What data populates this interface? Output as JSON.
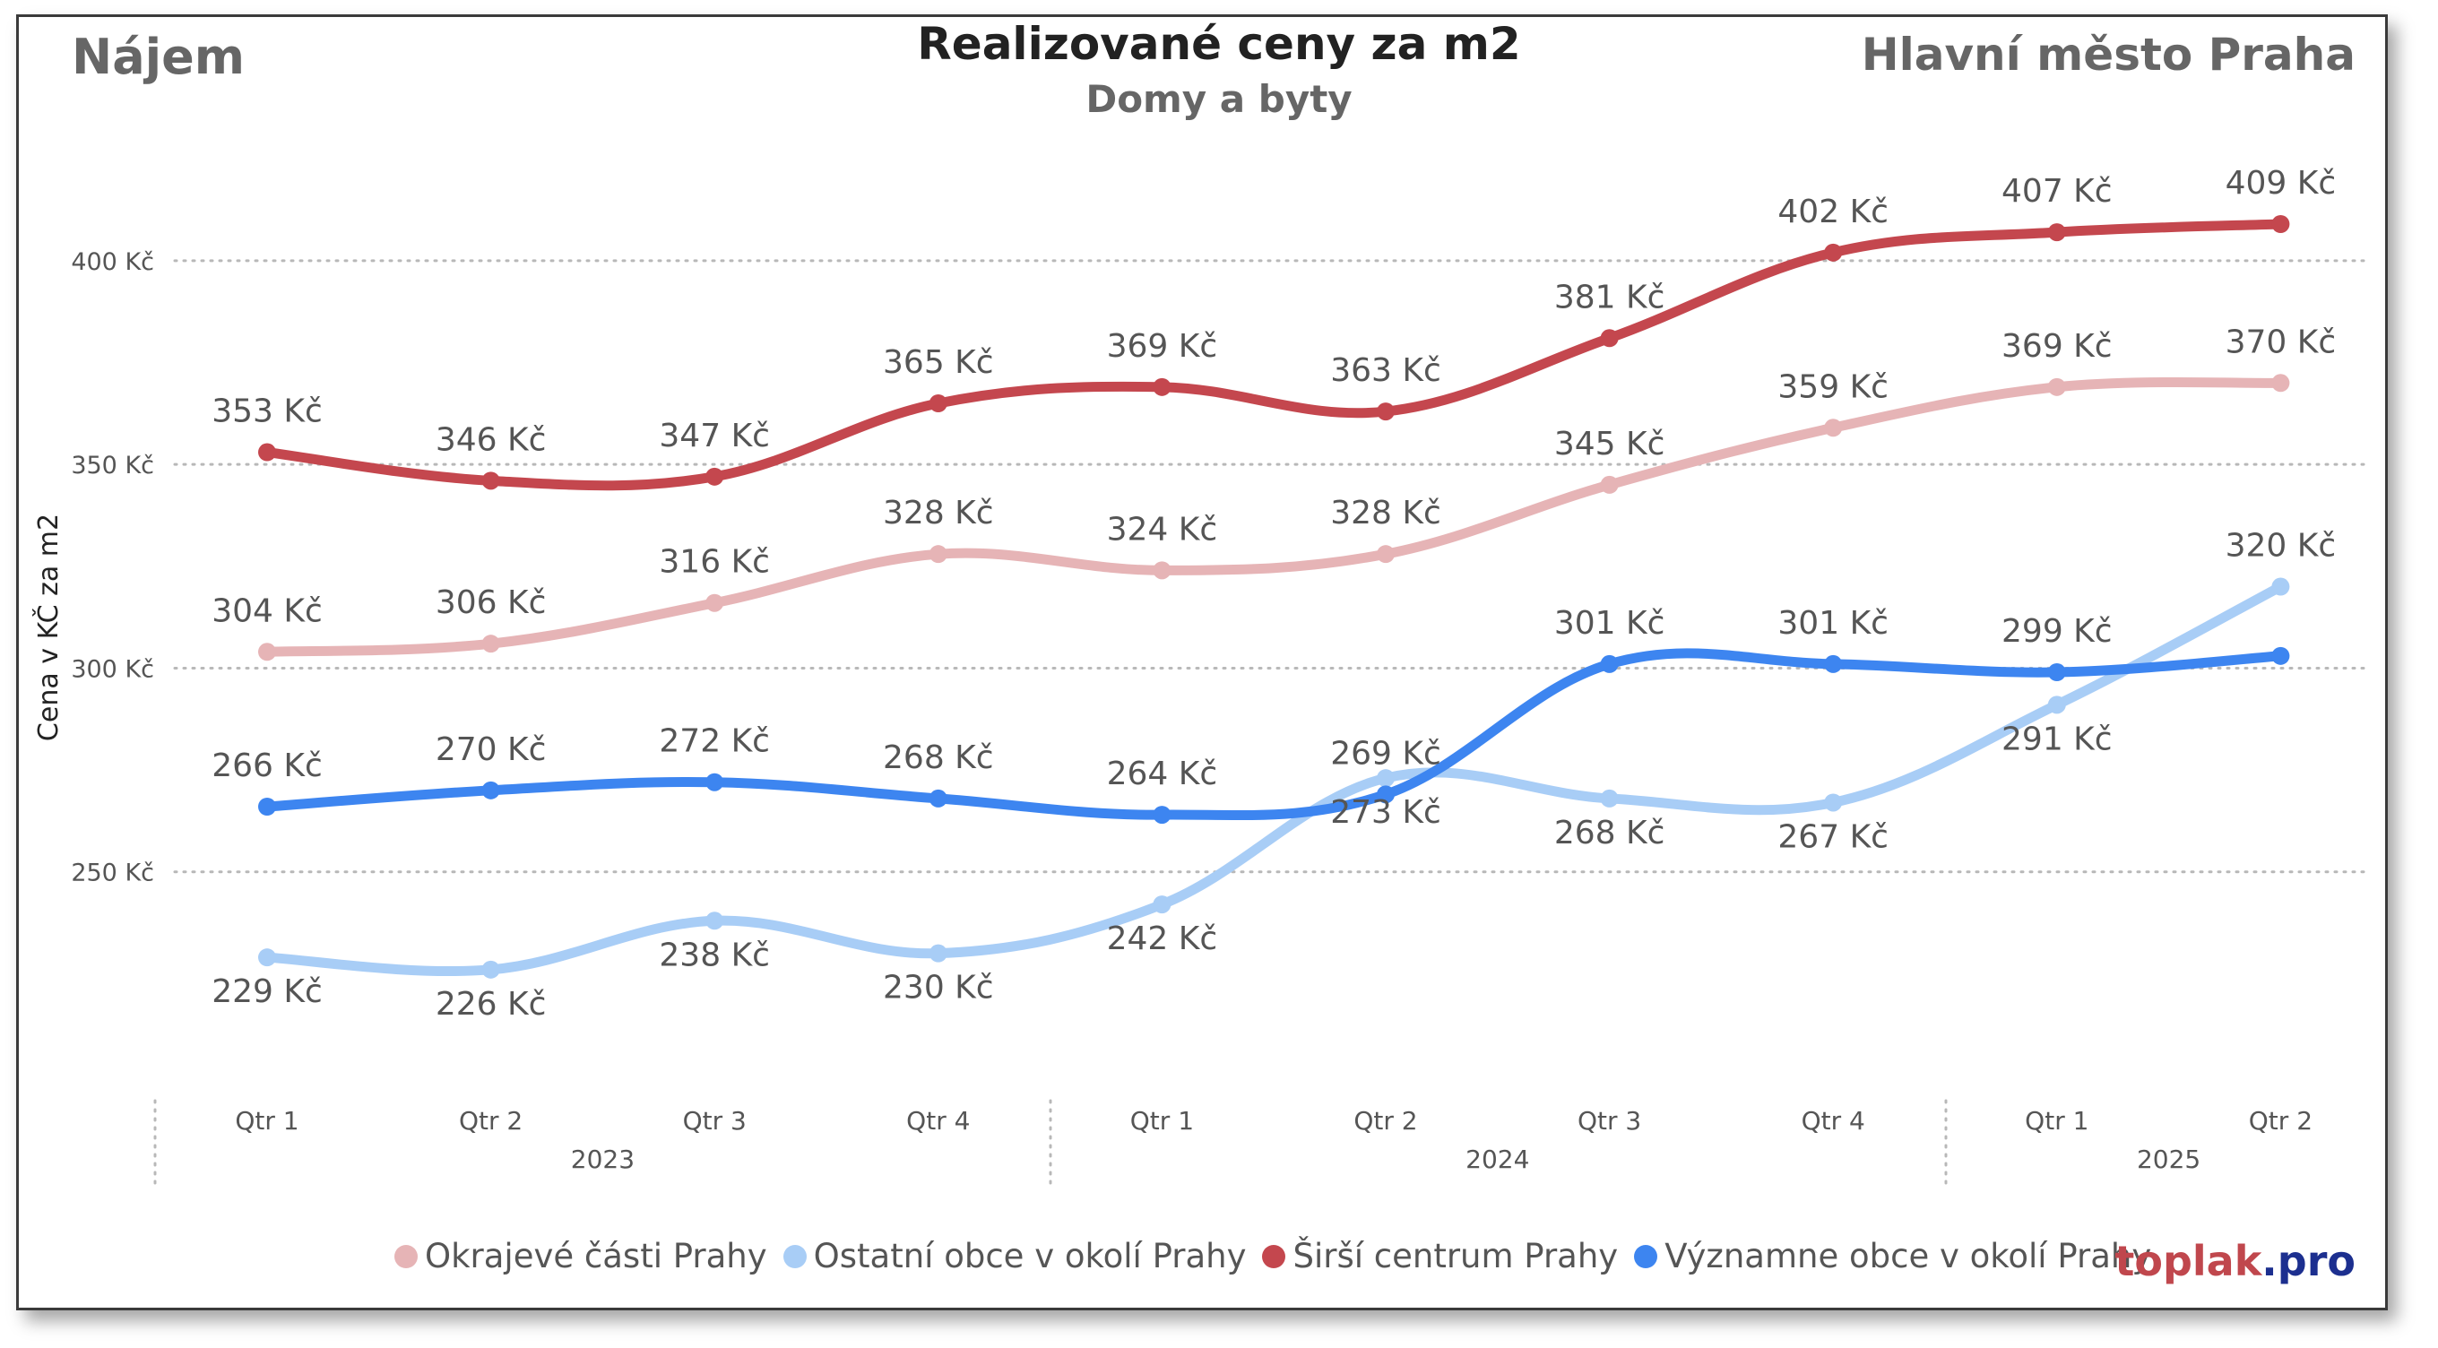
{
  "header": {
    "left": "Nájem",
    "title": "Realizované ceny za m2",
    "subtitle": "Domy a byty",
    "right": "Hlavní město Praha"
  },
  "brand": {
    "part1": "toplak",
    "part2": ".pro",
    "color1": "#c0474d",
    "color2": "#1c2f8f"
  },
  "chart_data": {
    "type": "line",
    "title": "Realizované ceny za m2",
    "subtitle": "Domy a byty",
    "ylabel": "Cena v KČ za m2",
    "xlabel": "",
    "ylim": [
      200,
      420
    ],
    "y_ticks": [
      {
        "value": 250,
        "label": "250 Kč"
      },
      {
        "value": 300,
        "label": "300 Kč"
      },
      {
        "value": 350,
        "label": "350 Kč"
      },
      {
        "value": 400,
        "label": "400 Kč"
      }
    ],
    "grid": "horizontal dotted",
    "legend_position": "bottom",
    "categories": [
      "Qtr 1",
      "Qtr 2",
      "Qtr 3",
      "Qtr 4",
      "Qtr 1",
      "Qtr 2",
      "Qtr 3",
      "Qtr 4",
      "Qtr 1",
      "Qtr 2"
    ],
    "year_groups": [
      {
        "label": "2023",
        "start": 0,
        "end": 3
      },
      {
        "label": "2024",
        "start": 4,
        "end": 7
      },
      {
        "label": "2025",
        "start": 8,
        "end": 9
      }
    ],
    "series": [
      {
        "name": "Okrajevé části Prahy",
        "color": "#e6b4b6",
        "values": [
          304,
          306,
          316,
          328,
          324,
          328,
          345,
          359,
          369,
          370
        ],
        "labels": [
          "304 Kč",
          "306 Kč",
          "316 Kč",
          "328 Kč",
          "324 Kč",
          "328 Kč",
          "345 Kč",
          "359 Kč",
          "369 Kč",
          "370 Kč"
        ],
        "label_side": [
          "above",
          "above",
          "above",
          "above",
          "above",
          "above",
          "above",
          "above",
          "above",
          "above"
        ]
      },
      {
        "name": "Ostatní obce v okolí Prahy",
        "color": "#a8cdf6",
        "values": [
          229,
          226,
          238,
          230,
          242,
          273,
          268,
          267,
          291,
          320
        ],
        "labels": [
          "229 Kč",
          "226 Kč",
          "238 Kč",
          "230 Kč",
          "242 Kč",
          "273 Kč",
          "268 Kč",
          "267 Kč",
          "291 Kč",
          "320 Kč"
        ],
        "label_side": [
          "below",
          "below",
          "below",
          "below",
          "below",
          "below",
          "below",
          "below",
          "below",
          "above"
        ]
      },
      {
        "name": "Širší centrum Prahy",
        "color": "#c4474e",
        "values": [
          353,
          346,
          347,
          365,
          369,
          363,
          381,
          402,
          407,
          409
        ],
        "labels": [
          "353 Kč",
          "346 Kč",
          "347 Kč",
          "365 Kč",
          "369 Kč",
          "363 Kč",
          "381 Kč",
          "402 Kč",
          "407 Kč",
          "409 Kč"
        ],
        "label_side": [
          "above",
          "above",
          "above",
          "above",
          "above",
          "above",
          "above",
          "above",
          "above",
          "above"
        ]
      },
      {
        "name": "Významne obce v okolí Prahy",
        "color": "#3d85f0",
        "values": [
          266,
          270,
          272,
          268,
          264,
          269,
          301,
          301,
          299,
          303
        ],
        "labels": [
          "266 Kč",
          "270 Kč",
          "272 Kč",
          "268 Kč",
          "264 Kč",
          "269 Kč",
          "301 Kč",
          "301 Kč",
          "299 Kč",
          ""
        ],
        "label_side": [
          "above",
          "above",
          "above",
          "above",
          "above",
          "above",
          "above",
          "above",
          "above",
          "none"
        ]
      }
    ]
  }
}
